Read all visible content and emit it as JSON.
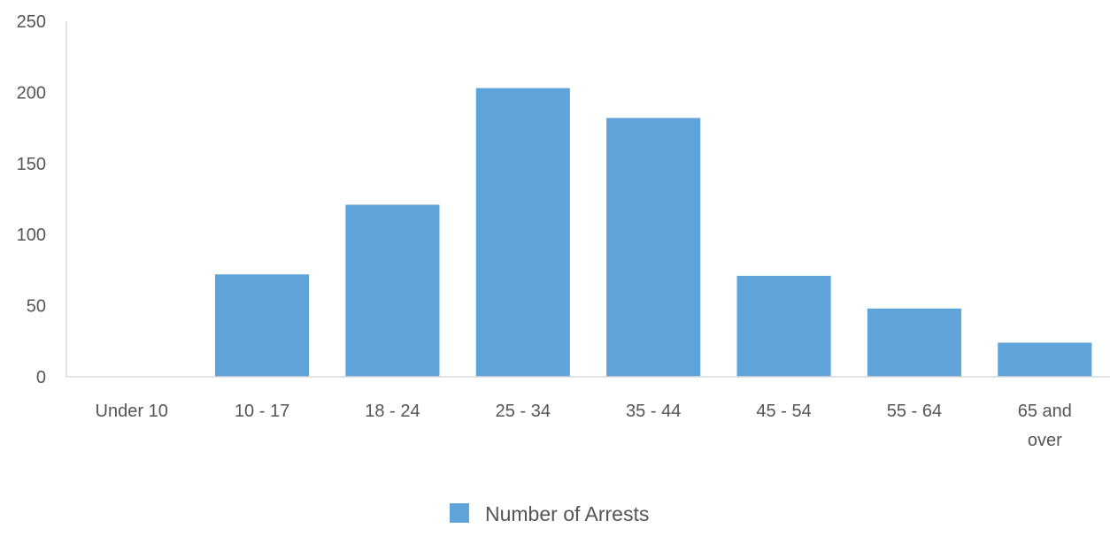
{
  "chart_data": {
    "type": "bar",
    "title": "",
    "xlabel": "",
    "ylabel": "",
    "categories": [
      "Under 10",
      "10 - 17",
      "18 - 24",
      "25 - 34",
      "35 - 44",
      "45 - 54",
      "55 - 64",
      "65 and over"
    ],
    "category_lines": [
      [
        "Under 10"
      ],
      [
        "10 - 17"
      ],
      [
        "18 - 24"
      ],
      [
        "25 - 34"
      ],
      [
        "35 - 44"
      ],
      [
        "45 - 54"
      ],
      [
        "55 - 64"
      ],
      [
        "65 and",
        "over"
      ]
    ],
    "series": [
      {
        "name": "Number of Arrests",
        "color": "#5ea4da",
        "values": [
          0,
          72,
          121,
          203,
          182,
          71,
          48,
          24
        ]
      }
    ],
    "ylim": [
      0,
      250
    ],
    "yticks": [
      0,
      50,
      100,
      150,
      200,
      250
    ],
    "grid": false,
    "legend_position": "bottom-center",
    "colors": {
      "axis": "#d9d9d9",
      "text": "#555555"
    }
  }
}
